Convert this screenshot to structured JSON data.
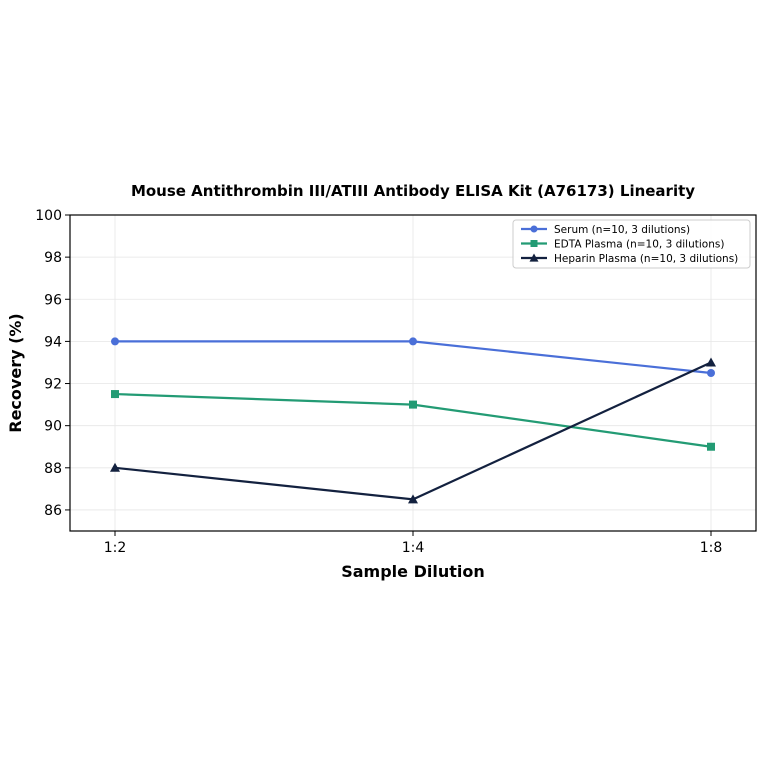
{
  "chart_data": {
    "type": "line",
    "title": "Mouse Antithrombin III/ATIII Antibody ELISA Kit (A76173) Linearity",
    "xlabel": "Sample Dilution",
    "ylabel": "Recovery (%)",
    "categories": [
      "1:2",
      "1:4",
      "1:8"
    ],
    "ylim": [
      85,
      100
    ],
    "yticks": [
      86,
      88,
      90,
      92,
      94,
      96,
      98,
      100
    ],
    "grid": true,
    "legend_position": "top-right",
    "series": [
      {
        "name": "Serum (n=10, 3 dilutions)",
        "values": [
          94,
          94,
          92.5
        ],
        "color": "#4a6fd8",
        "marker": "circle"
      },
      {
        "name": "EDTA Plasma (n=10, 3 dilutions)",
        "values": [
          91.5,
          91,
          89
        ],
        "color": "#239b74",
        "marker": "square"
      },
      {
        "name": "Heparin Plasma (n=10, 3 dilutions)",
        "values": [
          88,
          86.5,
          93
        ],
        "color": "#13213f",
        "marker": "triangle"
      }
    ]
  }
}
